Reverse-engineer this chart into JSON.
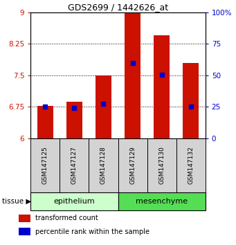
{
  "title": "GDS2699 / 1442626_at",
  "samples": [
    "GSM147125",
    "GSM147127",
    "GSM147128",
    "GSM147129",
    "GSM147130",
    "GSM147132"
  ],
  "bar_tops": [
    6.78,
    6.87,
    7.5,
    9.0,
    8.45,
    7.8
  ],
  "bar_base": 6.0,
  "percentile_values": [
    6.75,
    6.72,
    6.83,
    7.8,
    7.52,
    6.76
  ],
  "bar_color": "#cc1100",
  "blue_color": "#0000cc",
  "ylim_left": [
    6,
    9
  ],
  "ylim_right": [
    0,
    100
  ],
  "yticks_left": [
    6,
    6.75,
    7.5,
    8.25,
    9
  ],
  "yticks_right": [
    0,
    25,
    50,
    75,
    100
  ],
  "ytick_labels_left": [
    "6",
    "6.75",
    "7.5",
    "8.25",
    "9"
  ],
  "ytick_labels_right": [
    "0",
    "25",
    "50",
    "75",
    "100%"
  ],
  "groups": [
    {
      "label": "epithelium",
      "start": 0,
      "end": 3,
      "color": "#ccffcc"
    },
    {
      "label": "mesenchyme",
      "start": 3,
      "end": 6,
      "color": "#55dd55"
    }
  ],
  "tissue_label": "tissue ▶",
  "legend_items": [
    {
      "label": "transformed count",
      "color": "#cc1100"
    },
    {
      "label": "percentile rank within the sample",
      "color": "#0000cc"
    }
  ],
  "bar_width": 0.55,
  "sample_box_color": "#d3d3d3"
}
